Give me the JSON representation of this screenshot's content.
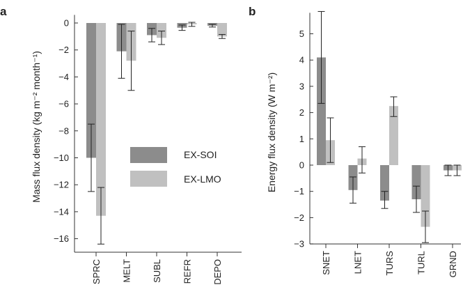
{
  "chart_data": [
    {
      "panel": "a",
      "type": "bar",
      "ylabel": "Mass flux density (kg m⁻² month⁻¹)",
      "ylim": [
        -17,
        0.6
      ],
      "yticks": [
        0,
        -2,
        -4,
        -6,
        -8,
        -10,
        -12,
        -14,
        -16
      ],
      "tick_labels": [
        "0",
        "−2",
        "−4",
        "−6",
        "−8",
        "−10",
        "−12",
        "−14",
        "−16"
      ],
      "categories": [
        "SPRC",
        "MELT",
        "SUBL",
        "REFR",
        "DEPO"
      ],
      "series": [
        {
          "name": "EX-SOI",
          "color": "#8c8c8c",
          "values": [
            -10.0,
            -2.1,
            -0.9,
            -0.35,
            -0.2
          ],
          "err_low": [
            -12.5,
            -4.1,
            -1.4,
            -0.55,
            -0.3
          ],
          "err_high": [
            -7.5,
            -0.1,
            -0.4,
            -0.15,
            -0.1
          ]
        },
        {
          "name": "EX-LMO",
          "color": "#c0c0c0",
          "values": [
            -14.3,
            -2.8,
            -1.1,
            -0.1,
            -1.0
          ],
          "err_low": [
            -16.4,
            -5.0,
            -1.6,
            -0.25,
            -1.15
          ],
          "err_high": [
            -12.2,
            -0.6,
            -0.6,
            0.05,
            -0.85
          ]
        }
      ],
      "legend": {
        "placement": "center-right"
      }
    },
    {
      "panel": "b",
      "type": "bar",
      "ylabel": "Energy flux density (W m⁻²)",
      "ylim": [
        -3,
        5.8
      ],
      "yticks": [
        5,
        4,
        3,
        2,
        1,
        0,
        -1,
        -2,
        -3
      ],
      "tick_labels": [
        "5",
        "4",
        "3",
        "2",
        "1",
        "0",
        "−1",
        "−2",
        "−3"
      ],
      "categories": [
        "SNET",
        "LNET",
        "TURS",
        "TURL",
        "GRND"
      ],
      "series": [
        {
          "name": "EX-SOI",
          "color": "#8c8c8c",
          "values": [
            4.1,
            -0.95,
            -1.35,
            -1.3,
            -0.2
          ],
          "err_low": [
            2.35,
            -1.45,
            -1.65,
            -1.8,
            -0.4
          ],
          "err_high": [
            5.85,
            -0.45,
            -1.0,
            -0.8,
            0.0
          ]
        },
        {
          "name": "EX-LMO",
          "color": "#c0c0c0",
          "values": [
            0.95,
            0.25,
            2.25,
            -2.35,
            -0.2
          ],
          "err_low": [
            0.1,
            -0.3,
            1.85,
            -2.95,
            -0.4
          ],
          "err_high": [
            1.8,
            0.7,
            2.6,
            -1.75,
            0.0
          ]
        }
      ]
    }
  ]
}
